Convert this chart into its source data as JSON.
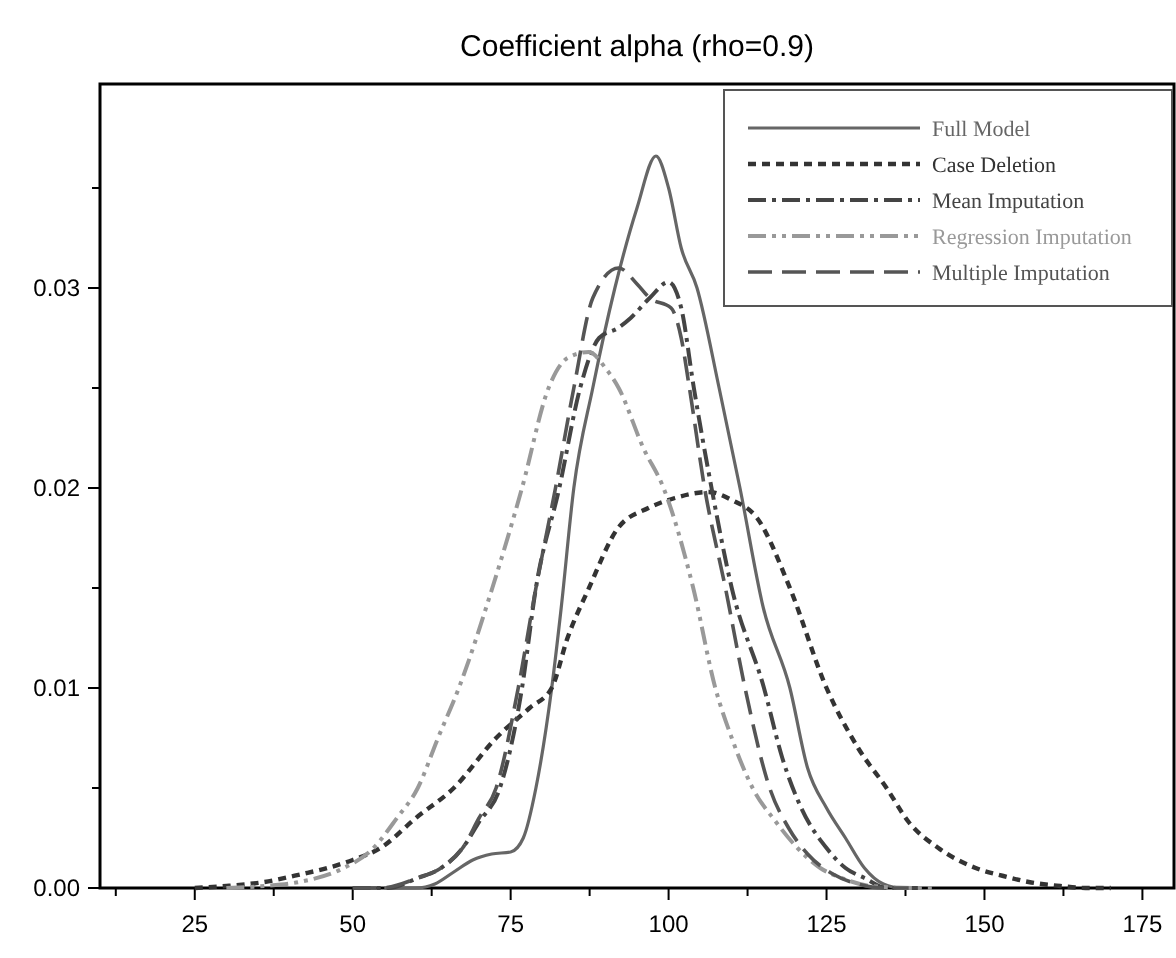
{
  "chart_data": {
    "type": "line",
    "title": "Coefficient alpha (rho=0.9)",
    "xlim": [
      10,
      180
    ],
    "ylim": [
      0,
      0.0402
    ],
    "xticks": [
      {
        "value": 12.5,
        "label": null
      },
      25,
      {
        "value": 37.5,
        "label": null
      },
      50,
      {
        "value": 62.5,
        "label": null
      },
      75,
      {
        "value": 87.5,
        "label": null
      },
      100,
      {
        "value": 112.5,
        "label": null
      },
      125,
      {
        "value": 137.5,
        "label": null
      },
      150,
      {
        "value": 162.5,
        "label": null
      },
      175
    ],
    "yticks": [
      {
        "value": 0,
        "label": "0.00"
      },
      {
        "value": 0.005,
        "label": null
      },
      0.01,
      {
        "value": 0.015,
        "label": null
      },
      0.02,
      {
        "value": 0.025,
        "label": null
      },
      0.03,
      {
        "value": 0.035,
        "label": null
      }
    ],
    "grid": false,
    "legend": "top right",
    "marker": "none",
    "series": [
      {
        "name": "Full Model",
        "color": "#666666",
        "line_style": "solid",
        "x": [
          55,
          60,
          63,
          66,
          69,
          72,
          75,
          77,
          79,
          81.5,
          83,
          85,
          88,
          91.5,
          95,
          98,
          100,
          102,
          104.5,
          108,
          111.3,
          115,
          119.2,
          122,
          125,
          128,
          131,
          134,
          137,
          140
        ],
        "values": [
          0,
          0,
          0.0002,
          0.0008,
          0.0014,
          0.0017,
          0.0018,
          0.0025,
          0.005,
          0.01,
          0.014,
          0.02,
          0.025,
          0.03,
          0.034,
          0.0366,
          0.035,
          0.032,
          0.03,
          0.025,
          0.02,
          0.014,
          0.01,
          0.006,
          0.004,
          0.0025,
          0.001,
          0.0002,
          0,
          0
        ]
      },
      {
        "name": "Case Deletion",
        "color": "#333333",
        "line_style": "dashed",
        "x": [
          25,
          30,
          36,
          42,
          46,
          50,
          54.4,
          60,
          66,
          72.7,
          78,
          81.5,
          84,
          87.4,
          92,
          96.8,
          101,
          106.3,
          110,
          114,
          119.2,
          125,
          130,
          134.5,
          138,
          142.7,
          148.6,
          153,
          157,
          162,
          166,
          170
        ],
        "values": [
          0,
          0.0001,
          0.0003,
          0.0007,
          0.001,
          0.0014,
          0.002,
          0.0035,
          0.005,
          0.0075,
          0.009,
          0.01,
          0.0125,
          0.015,
          0.018,
          0.019,
          0.0195,
          0.0198,
          0.0194,
          0.0185,
          0.015,
          0.01,
          0.007,
          0.005,
          0.0033,
          0.002,
          0.001,
          0.0006,
          0.0003,
          0.0001,
          0,
          0
        ]
      },
      {
        "name": "Mean Imputation",
        "color": "#444444",
        "line_style": "dashdot",
        "x": [
          50,
          55.6,
          60.3,
          64,
          67.4,
          70,
          73.3,
          76.8,
          79,
          82.7,
          86,
          89,
          92,
          94,
          97,
          100,
          102,
          104,
          106.8,
          110,
          115.1,
          118,
          121,
          125,
          128,
          131,
          134.5,
          140
        ],
        "values": [
          0,
          0,
          0.0005,
          0.001,
          0.002,
          0.0033,
          0.005,
          0.01,
          0.015,
          0.02,
          0.025,
          0.0275,
          0.028,
          0.0285,
          0.0295,
          0.0303,
          0.029,
          0.025,
          0.02,
          0.015,
          0.01,
          0.0065,
          0.004,
          0.002,
          0.001,
          0.0005,
          0,
          0
        ]
      },
      {
        "name": "Regression Imputation",
        "color": "#999999",
        "line_style": "dashdotdot",
        "x": [
          30,
          36,
          41.5,
          48.6,
          53.3,
          57,
          60.3,
          63.5,
          66.8,
          72.1,
          76.8,
          81,
          84,
          87.4,
          90,
          92.1,
          96,
          99.2,
          103.9,
          107.4,
          110,
          113.3,
          117,
          120.4,
          124,
          127.4,
          132,
          139,
          142
        ],
        "values": [
          0,
          0.0001,
          0.0003,
          0.001,
          0.002,
          0.0035,
          0.005,
          0.0075,
          0.01,
          0.015,
          0.02,
          0.025,
          0.0265,
          0.0268,
          0.026,
          0.025,
          0.022,
          0.02,
          0.015,
          0.01,
          0.0075,
          0.005,
          0.0033,
          0.002,
          0.001,
          0.0005,
          0.0001,
          0,
          0
        ]
      },
      {
        "name": "Multiple Imputation",
        "color": "#555555",
        "line_style": "longdash",
        "x": [
          50,
          54.4,
          60.3,
          64,
          67.4,
          70,
          72.7,
          76.2,
          79,
          82.1,
          85,
          88,
          92.1,
          95,
          97,
          100.4,
          102,
          103.3,
          105.7,
          109,
          112.1,
          116,
          119,
          122,
          126,
          130,
          134,
          138
        ],
        "values": [
          0,
          0,
          0.0005,
          0.001,
          0.002,
          0.0035,
          0.005,
          0.01,
          0.015,
          0.02,
          0.025,
          0.0295,
          0.031,
          0.0302,
          0.0295,
          0.029,
          0.0275,
          0.025,
          0.02,
          0.015,
          0.01,
          0.005,
          0.003,
          0.0017,
          0.0007,
          0.0002,
          0,
          0
        ]
      }
    ]
  }
}
